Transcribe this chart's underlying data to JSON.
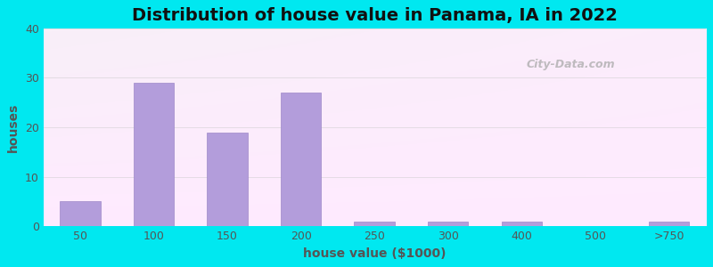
{
  "title": "Distribution of house value in Panama, IA in 2022",
  "xlabel": "house value ($1000)",
  "ylabel": "houses",
  "bar_labels": [
    "50",
    "100",
    "150",
    "200",
    "250",
    "300",
    "400",
    "500",
    ">750"
  ],
  "bar_values": [
    5,
    29,
    19,
    27,
    1,
    1,
    1,
    0,
    1
  ],
  "bar_color": "#b39ddb",
  "bar_edge_color": "#9e89c8",
  "ylim": [
    0,
    40
  ],
  "yticks": [
    0,
    10,
    20,
    30,
    40
  ],
  "background_outer": "#00e8f0",
  "title_fontsize": 14,
  "axis_label_fontsize": 10,
  "tick_fontsize": 9,
  "watermark_text": "City-Data.com",
  "bar_width": 0.55,
  "figsize": [
    8.0,
    3.0
  ],
  "dpi": 100
}
